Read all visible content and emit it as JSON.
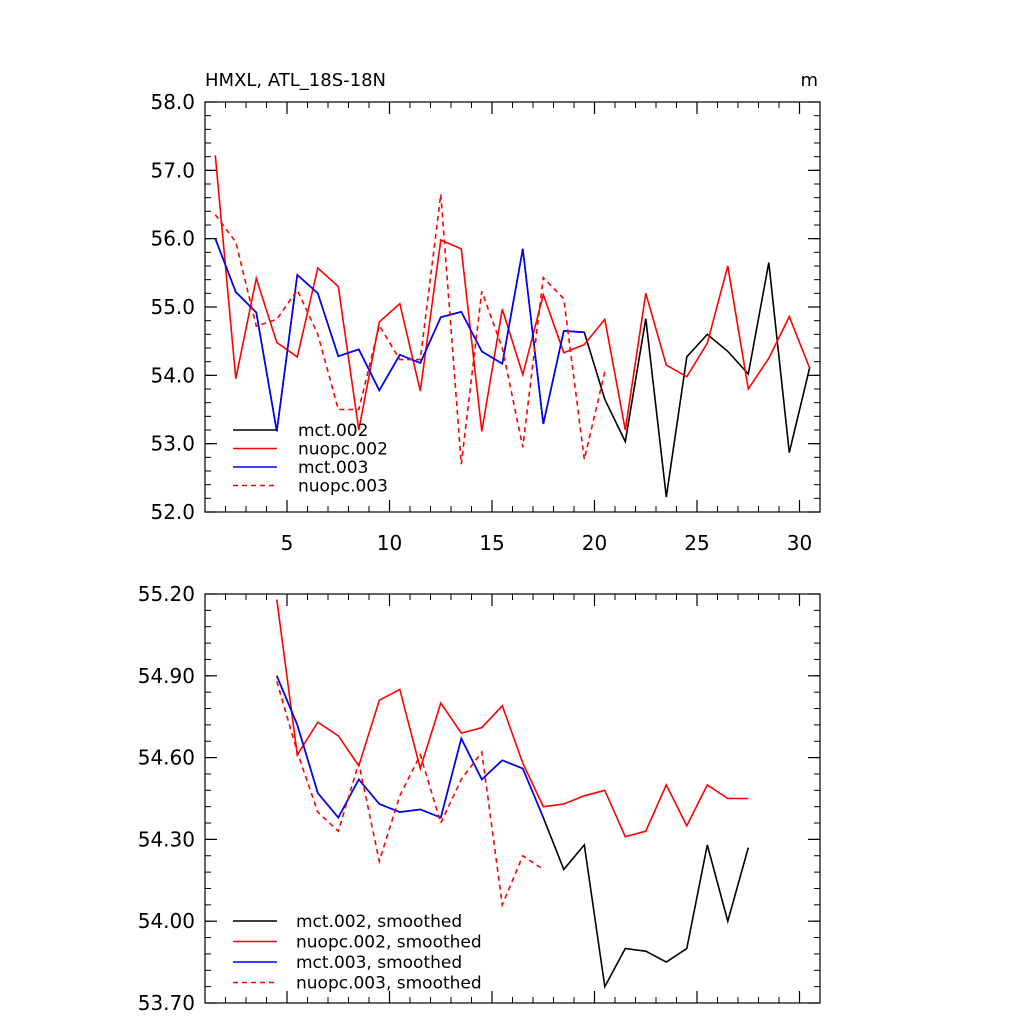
{
  "figure": {
    "title_left": "HMXL, ATL_18S-18N",
    "units": "m"
  },
  "chart_data": [
    {
      "type": "line",
      "xlim": [
        1,
        31
      ],
      "ylim": [
        52.0,
        58.0
      ],
      "xticks": [
        5,
        10,
        15,
        20,
        25,
        30
      ],
      "yticks": [
        "52.0",
        "53.0",
        "54.0",
        "55.0",
        "56.0",
        "57.0",
        "58.0"
      ],
      "legend_position": "bottom-left",
      "series": [
        {
          "name": "mct.002",
          "color": "#000000",
          "dash": "solid",
          "x": [
            1.5,
            2.5,
            3.5,
            4.5,
            5.5,
            6.5,
            7.5,
            8.5,
            9.5,
            10.5,
            11.5,
            12.5,
            13.5,
            14.5,
            15.5,
            16.5,
            17.5,
            18.5,
            19.5,
            20.5,
            21.5,
            22.5,
            23.5,
            24.5,
            25.5,
            26.5,
            27.5,
            28.5,
            29.5,
            30.5
          ],
          "values": [
            56.0,
            55.22,
            54.92,
            53.18,
            55.47,
            55.2,
            54.28,
            54.38,
            53.78,
            54.3,
            54.18,
            54.85,
            54.93,
            54.35,
            54.17,
            55.85,
            53.29,
            54.65,
            54.63,
            53.65,
            53.03,
            54.83,
            52.22,
            54.27,
            54.6,
            54.35,
            54.02,
            55.65,
            52.87,
            54.12
          ]
        },
        {
          "name": "nuopc.002",
          "color": "#ff0000",
          "dash": "solid",
          "x": [
            1.5,
            2.5,
            3.5,
            4.5,
            5.5,
            6.5,
            7.5,
            8.5,
            9.5,
            10.5,
            11.5,
            12.5,
            13.5,
            14.5,
            15.5,
            16.5,
            17.5,
            18.5,
            19.5,
            20.5,
            21.5,
            22.5,
            23.5,
            24.5,
            25.5,
            26.5,
            27.5,
            28.5,
            29.5,
            30.5
          ],
          "values": [
            57.22,
            53.95,
            55.42,
            54.48,
            54.27,
            55.57,
            55.3,
            53.2,
            54.78,
            55.05,
            53.77,
            55.98,
            55.85,
            53.18,
            54.97,
            54.01,
            55.18,
            54.33,
            54.45,
            54.82,
            53.2,
            55.2,
            54.15,
            53.98,
            54.47,
            55.6,
            53.8,
            54.25,
            54.86,
            54.1
          ]
        },
        {
          "name": "mct.003",
          "color": "#0000ff",
          "dash": "solid",
          "x": [
            1.5,
            2.5,
            3.5,
            4.5,
            5.5,
            6.5,
            7.5,
            8.5,
            9.5,
            10.5,
            11.5,
            12.5,
            13.5,
            14.5,
            15.5,
            16.5,
            17.5,
            18.5,
            19.5
          ],
          "values": [
            56.0,
            55.22,
            54.92,
            53.18,
            55.47,
            55.2,
            54.28,
            54.38,
            53.78,
            54.3,
            54.18,
            54.85,
            54.93,
            54.35,
            54.17,
            55.85,
            53.29,
            54.65,
            54.63
          ]
        },
        {
          "name": "nuopc.003",
          "color": "#ff0000",
          "dash": "dashed",
          "x": [
            1.5,
            2.5,
            3.5,
            4.5,
            5.5,
            6.5,
            7.5,
            8.5,
            9.5,
            10.5,
            11.5,
            12.5,
            13.5,
            14.5,
            15.5,
            16.5,
            17.5,
            18.5,
            19.5,
            20.5
          ],
          "values": [
            56.35,
            55.95,
            54.72,
            54.82,
            55.25,
            54.6,
            53.5,
            53.5,
            54.73,
            54.23,
            54.23,
            56.65,
            52.7,
            55.23,
            54.4,
            52.95,
            55.43,
            55.12,
            52.77,
            54.05
          ]
        }
      ]
    },
    {
      "type": "line",
      "xlim": [
        1,
        31
      ],
      "ylim": [
        53.7,
        55.2
      ],
      "xticks": [
        5,
        10,
        15,
        20,
        25,
        30
      ],
      "yticks": [
        "53.70",
        "54.00",
        "54.30",
        "54.60",
        "54.90",
        "55.20"
      ],
      "legend_position": "bottom-left",
      "series": [
        {
          "name": "mct.002, smoothed",
          "color": "#000000",
          "dash": "solid",
          "x": [
            4.5,
            5.5,
            6.5,
            7.5,
            8.5,
            9.5,
            10.5,
            11.5,
            12.5,
            13.5,
            14.5,
            15.5,
            16.5,
            17.5,
            18.5,
            19.5,
            20.5,
            21.5,
            22.5,
            23.5,
            24.5,
            25.5,
            26.5,
            27.5
          ],
          "values": [
            54.9,
            54.72,
            54.47,
            54.38,
            54.52,
            54.43,
            54.4,
            54.41,
            54.38,
            54.67,
            54.52,
            54.59,
            54.56,
            54.38,
            54.19,
            54.28,
            53.76,
            53.9,
            53.89,
            53.85,
            53.9,
            54.28,
            54.0,
            54.27
          ]
        },
        {
          "name": "nuopc.002, smoothed",
          "color": "#ff0000",
          "dash": "solid",
          "x": [
            4.5,
            5.5,
            6.5,
            7.5,
            8.5,
            9.5,
            10.5,
            11.5,
            12.5,
            13.5,
            14.5,
            15.5,
            16.5,
            17.5,
            18.5,
            19.5,
            20.5,
            21.5,
            22.5,
            23.5,
            24.5,
            25.5,
            26.5,
            27.5
          ],
          "values": [
            55.18,
            54.61,
            54.73,
            54.68,
            54.57,
            54.81,
            54.85,
            54.56,
            54.8,
            54.69,
            54.71,
            54.79,
            54.58,
            54.42,
            54.43,
            54.46,
            54.48,
            54.31,
            54.33,
            54.5,
            54.35,
            54.5,
            54.45,
            54.45
          ]
        },
        {
          "name": "mct.003, smoothed",
          "color": "#0000ff",
          "dash": "solid",
          "x": [
            4.5,
            5.5,
            6.5,
            7.5,
            8.5,
            9.5,
            10.5,
            11.5,
            12.5,
            13.5,
            14.5,
            15.5,
            16.5,
            17.5
          ],
          "values": [
            54.9,
            54.72,
            54.47,
            54.38,
            54.52,
            54.43,
            54.4,
            54.41,
            54.38,
            54.67,
            54.52,
            54.59,
            54.56,
            54.38
          ]
        },
        {
          "name": "nuopc.003, smoothed",
          "color": "#ff0000",
          "dash": "dashed",
          "x": [
            4.5,
            5.5,
            6.5,
            7.5,
            8.5,
            9.5,
            10.5,
            11.5,
            12.5,
            13.5,
            14.5,
            15.5,
            16.5,
            17.5
          ],
          "values": [
            54.88,
            54.62,
            54.4,
            54.33,
            54.58,
            54.22,
            54.46,
            54.61,
            54.36,
            54.52,
            54.62,
            54.06,
            54.24,
            54.19
          ]
        }
      ]
    }
  ]
}
